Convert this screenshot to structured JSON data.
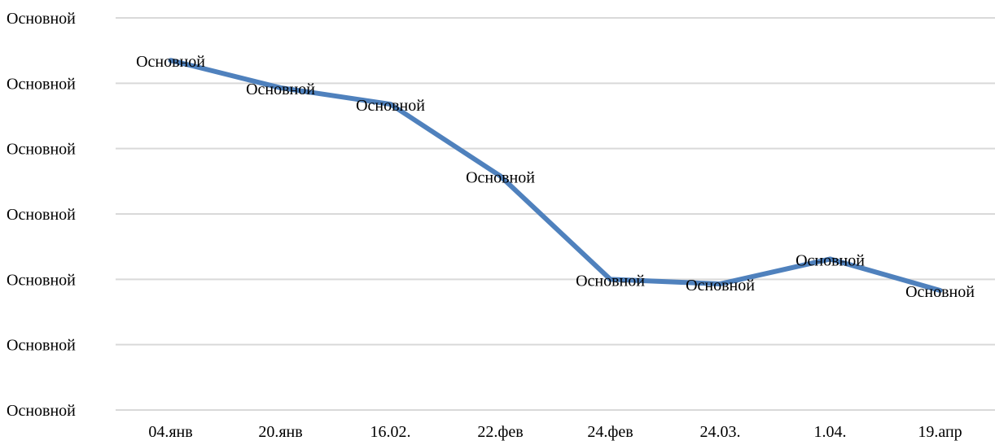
{
  "chart_data": {
    "type": "line",
    "title": "",
    "xlabel": "",
    "ylabel": "",
    "categories": [
      "04.янв",
      "20.янв",
      "16.02.",
      "22.фев",
      "24.фев",
      "24.03.",
      "1.04.",
      "19.апр"
    ],
    "y_tick_labels": [
      "Основной",
      "Основной",
      "Основной",
      "Основной",
      "Основной",
      "Основной",
      "Основной"
    ],
    "ylim": [
      0,
      6
    ],
    "series": [
      {
        "values": [
          5.35,
          4.93,
          4.68,
          3.58,
          2.0,
          1.93,
          2.31,
          1.83
        ],
        "data_labels": [
          "Основной",
          "Основной",
          "Основной",
          "Основной",
          "Основной",
          "Основной",
          "Основной",
          "Основной"
        ],
        "color": "#4f81bd"
      }
    ],
    "grid": true,
    "legend": "none",
    "gridline_color": "#d9d9d9"
  }
}
